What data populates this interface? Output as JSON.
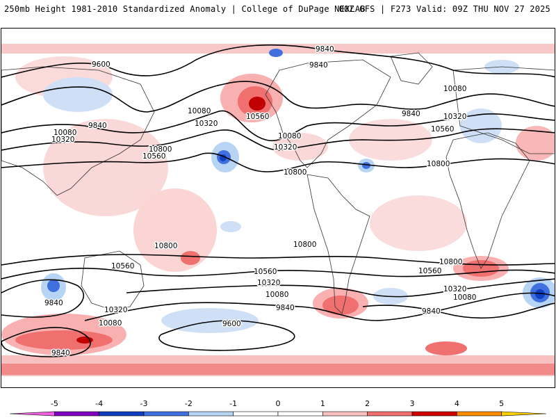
{
  "header": {
    "left": "250mb Height 1981-2010 Standardized Anomaly | College of DuPage NEXLAB",
    "right": "00Z GFS | F273 Valid: 09Z THU NOV 27 2025"
  },
  "map": {
    "variable": "250mb Height Standardized Anomaly",
    "contour_labels": [
      "9840",
      "9600",
      "9840",
      "10080",
      "10080",
      "10320",
      "9840",
      "10320",
      "10560",
      "10800",
      "10560",
      "10080",
      "10320",
      "10800",
      "9840",
      "10080",
      "10320",
      "10560",
      "10800",
      "10800",
      "10800",
      "10560",
      "10320",
      "10080",
      "9840",
      "10560",
      "10800",
      "10320",
      "10080",
      "9840",
      "10560",
      "9840",
      "10320",
      "10080",
      "9600",
      "9840"
    ]
  },
  "colorbar": {
    "ticks": [
      "-5",
      "-4",
      "-3",
      "-2",
      "-1",
      "0",
      "1",
      "2",
      "3",
      "4",
      "5"
    ],
    "colors": [
      "#f060e0",
      "#8000c0",
      "#1040c0",
      "#4070e0",
      "#b8d4f4",
      "#ffffff",
      "#ffffff",
      "#f8c0c0",
      "#f07070",
      "#d00000",
      "#ff8c00",
      "#ffd000"
    ]
  }
}
